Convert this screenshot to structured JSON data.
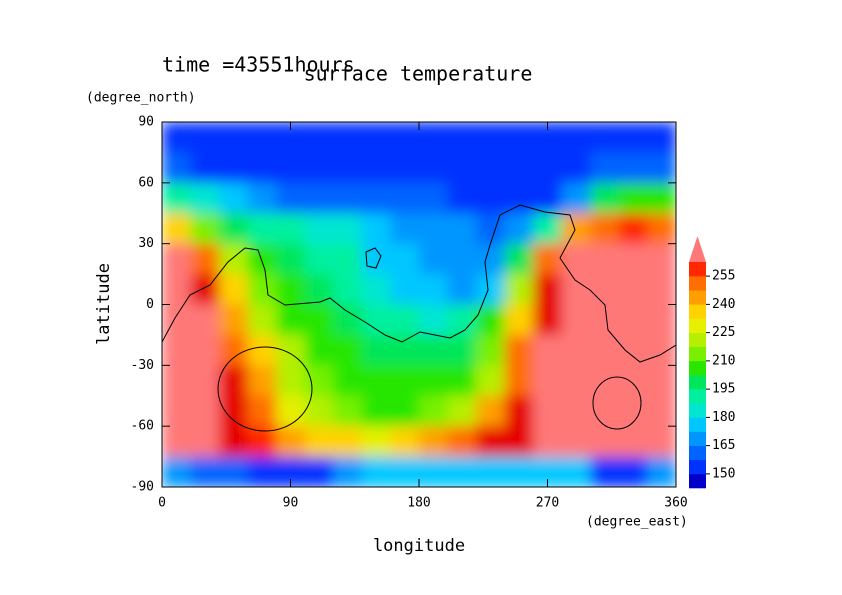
{
  "chart_data": {
    "type": "contour",
    "title": "surface temperature",
    "subtitle": "time =43551hours",
    "x_label": "longitude",
    "x_unit": "(degree_east)",
    "y_label": "latitude",
    "y_unit": "(degree_north)",
    "xlim": [
      0,
      360
    ],
    "ylim": [
      -90,
      90
    ],
    "xticks": [
      0,
      90,
      180,
      270,
      360
    ],
    "yticks": [
      -90,
      -60,
      -30,
      0,
      30,
      60,
      90
    ],
    "x": [
      10,
      30,
      50,
      70,
      90,
      110,
      130,
      150,
      170,
      190,
      210,
      230,
      250,
      270,
      290,
      310,
      330,
      350
    ],
    "y": [
      82.5,
      67.5,
      52.5,
      37.5,
      22.5,
      7.5,
      -7.5,
      -22.5,
      -37.5,
      -52.5,
      -67.5,
      -82.5
    ],
    "z": [
      [
        145,
        145,
        145,
        145,
        145,
        145,
        145,
        145,
        145,
        145,
        145,
        145,
        145,
        145,
        145,
        145,
        145,
        145
      ],
      [
        150,
        148,
        148,
        148,
        148,
        148,
        148,
        148,
        148,
        148,
        148,
        148,
        148,
        148,
        148,
        150,
        150,
        150
      ],
      [
        180,
        175,
        165,
        160,
        155,
        150,
        150,
        150,
        150,
        150,
        148,
        145,
        145,
        148,
        160,
        190,
        200,
        195
      ],
      [
        230,
        205,
        190,
        180,
        180,
        175,
        175,
        170,
        162,
        160,
        158,
        155,
        160,
        180,
        235,
        245,
        250,
        245
      ],
      [
        265,
        240,
        215,
        195,
        190,
        185,
        180,
        170,
        165,
        160,
        158,
        162,
        190,
        240,
        270,
        270,
        270,
        270
      ],
      [
        270,
        255,
        225,
        205,
        195,
        190,
        185,
        178,
        170,
        165,
        162,
        170,
        215,
        255,
        270,
        270,
        270,
        270
      ],
      [
        270,
        265,
        235,
        215,
        200,
        195,
        190,
        185,
        180,
        178,
        180,
        195,
        230,
        260,
        270,
        270,
        270,
        270
      ],
      [
        270,
        270,
        245,
        225,
        210,
        200,
        195,
        190,
        190,
        190,
        192,
        205,
        240,
        265,
        270,
        270,
        270,
        270
      ],
      [
        270,
        270,
        255,
        235,
        215,
        205,
        198,
        195,
        195,
        195,
        200,
        215,
        245,
        270,
        270,
        270,
        270,
        270
      ],
      [
        270,
        270,
        260,
        240,
        220,
        210,
        205,
        200,
        200,
        205,
        215,
        235,
        255,
        270,
        270,
        270,
        270,
        270
      ],
      [
        270,
        268,
        262,
        250,
        238,
        230,
        225,
        222,
        225,
        235,
        245,
        255,
        262,
        270,
        270,
        270,
        270,
        270
      ],
      [
        160,
        155,
        150,
        145,
        145,
        145,
        160,
        165,
        165,
        165,
        165,
        165,
        165,
        165,
        165,
        145,
        148,
        160
      ]
    ],
    "levels": [
      142.5,
      150,
      157.5,
      165,
      172.5,
      180,
      187.5,
      195,
      202.5,
      210,
      217.5,
      225,
      232.5,
      240,
      247.5,
      255,
      262.5
    ],
    "colors": [
      "#0000c8",
      "#0032ff",
      "#0064ff",
      "#0096ff",
      "#00c8ff",
      "#00e6d2",
      "#00f0a0",
      "#00e65a",
      "#28e600",
      "#78f000",
      "#b4f000",
      "#e6f000",
      "#ffd200",
      "#ffa000",
      "#ff6e00",
      "#ff2800",
      "#e60000",
      "#ff7878"
    ],
    "colorbar_ticks": [
      150,
      165,
      180,
      195,
      210,
      225,
      240,
      255
    ]
  }
}
